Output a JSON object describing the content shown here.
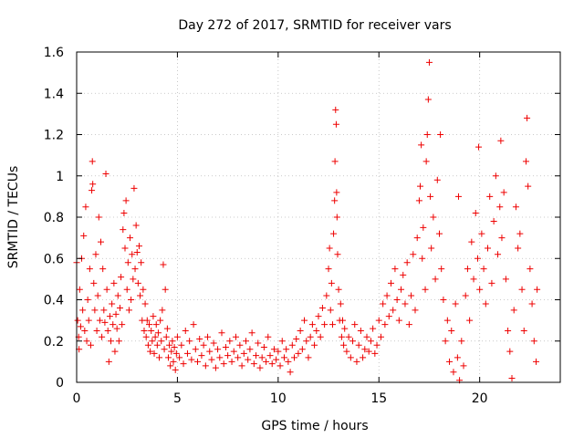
{
  "chart_data": {
    "type": "scatter",
    "title": "Day 272 of 2017, SRMTID for receiver vars",
    "xlabel": "GPS time / hours",
    "ylabel": "SRMTID / TECUs",
    "xlim": [
      0,
      24
    ],
    "ylim": [
      0,
      1.6
    ],
    "grid": true,
    "marker": "+",
    "color": "#ee0000",
    "xticks": [
      0,
      5,
      10,
      15,
      20
    ],
    "xtick_labels": [
      "0",
      "5",
      "10",
      "15",
      "20"
    ],
    "yticks": [
      0,
      0.2,
      0.4,
      0.6,
      0.8,
      1.0,
      1.2,
      1.4,
      1.6
    ],
    "ytick_labels": [
      "0",
      "0.2",
      "0.4",
      "0.6",
      "0.8",
      "1",
      "1.2",
      "1.4",
      "1.6"
    ],
    "series": [
      {
        "name": "SRMTID",
        "points": [
          [
            0.0,
            0.58
          ],
          [
            0.05,
            0.3
          ],
          [
            0.1,
            0.22
          ],
          [
            0.12,
            0.16
          ],
          [
            0.15,
            0.45
          ],
          [
            0.2,
            0.27
          ],
          [
            0.25,
            0.6
          ],
          [
            0.3,
            0.35
          ],
          [
            0.35,
            0.71
          ],
          [
            0.4,
            0.25
          ],
          [
            0.45,
            0.85
          ],
          [
            0.5,
            0.2
          ],
          [
            0.55,
            0.4
          ],
          [
            0.6,
            0.3
          ],
          [
            0.65,
            0.55
          ],
          [
            0.7,
            0.18
          ],
          [
            0.75,
            0.93
          ],
          [
            0.78,
            1.07
          ],
          [
            0.8,
            0.96
          ],
          [
            0.85,
            0.48
          ],
          [
            0.9,
            0.35
          ],
          [
            0.95,
            0.62
          ],
          [
            1.0,
            0.25
          ],
          [
            1.05,
            0.42
          ],
          [
            1.1,
            0.8
          ],
          [
            1.15,
            0.3
          ],
          [
            1.2,
            0.68
          ],
          [
            1.25,
            0.22
          ],
          [
            1.3,
            0.55
          ],
          [
            1.35,
            0.35
          ],
          [
            1.4,
            0.29
          ],
          [
            1.45,
            1.01
          ],
          [
            1.5,
            0.45
          ],
          [
            1.55,
            0.25
          ],
          [
            1.6,
            0.1
          ],
          [
            1.65,
            0.32
          ],
          [
            1.7,
            0.2
          ],
          [
            1.75,
            0.38
          ],
          [
            1.8,
            0.28
          ],
          [
            1.85,
            0.48
          ],
          [
            1.9,
            0.15
          ],
          [
            1.95,
            0.33
          ],
          [
            2.0,
            0.26
          ],
          [
            2.05,
            0.42
          ],
          [
            2.1,
            0.2
          ],
          [
            2.15,
            0.36
          ],
          [
            2.2,
            0.51
          ],
          [
            2.25,
            0.28
          ],
          [
            2.3,
            0.74
          ],
          [
            2.35,
            0.82
          ],
          [
            2.4,
            0.65
          ],
          [
            2.45,
            0.88
          ],
          [
            2.5,
            0.45
          ],
          [
            2.55,
            0.58
          ],
          [
            2.6,
            0.35
          ],
          [
            2.65,
            0.7
          ],
          [
            2.7,
            0.4
          ],
          [
            2.75,
            0.62
          ],
          [
            2.8,
            0.5
          ],
          [
            2.85,
            0.94
          ],
          [
            2.9,
            0.55
          ],
          [
            2.95,
            0.76
          ],
          [
            3.0,
            0.63
          ],
          [
            3.05,
            0.48
          ],
          [
            3.1,
            0.66
          ],
          [
            3.15,
            0.42
          ],
          [
            3.2,
            0.58
          ],
          [
            3.25,
            0.3
          ],
          [
            3.3,
            0.45
          ],
          [
            3.35,
            0.25
          ],
          [
            3.4,
            0.38
          ],
          [
            3.45,
            0.22
          ],
          [
            3.5,
            0.3
          ],
          [
            3.55,
            0.18
          ],
          [
            3.6,
            0.28
          ],
          [
            3.65,
            0.15
          ],
          [
            3.7,
            0.25
          ],
          [
            3.75,
            0.2
          ],
          [
            3.8,
            0.32
          ],
          [
            3.85,
            0.14
          ],
          [
            3.9,
            0.22
          ],
          [
            3.95,
            0.28
          ],
          [
            4.0,
            0.18
          ],
          [
            4.05,
            0.24
          ],
          [
            4.1,
            0.12
          ],
          [
            4.15,
            0.3
          ],
          [
            4.2,
            0.2
          ],
          [
            4.25,
            0.35
          ],
          [
            4.3,
            0.57
          ],
          [
            4.35,
            0.16
          ],
          [
            4.4,
            0.45
          ],
          [
            4.45,
            0.22
          ],
          [
            4.5,
            0.26
          ],
          [
            4.55,
            0.12
          ],
          [
            4.6,
            0.18
          ],
          [
            4.65,
            0.08
          ],
          [
            4.7,
            0.15
          ],
          [
            4.75,
            0.2
          ],
          [
            4.8,
            0.1
          ],
          [
            4.85,
            0.17
          ],
          [
            4.9,
            0.06
          ],
          [
            4.95,
            0.14
          ],
          [
            5.0,
            0.22
          ],
          [
            5.1,
            0.12
          ],
          [
            5.2,
            0.18
          ],
          [
            5.3,
            0.09
          ],
          [
            5.4,
            0.25
          ],
          [
            5.5,
            0.14
          ],
          [
            5.6,
            0.2
          ],
          [
            5.7,
            0.11
          ],
          [
            5.8,
            0.28
          ],
          [
            5.9,
            0.16
          ],
          [
            6.0,
            0.1
          ],
          [
            6.1,
            0.21
          ],
          [
            6.2,
            0.13
          ],
          [
            6.3,
            0.18
          ],
          [
            6.4,
            0.08
          ],
          [
            6.5,
            0.22
          ],
          [
            6.6,
            0.15
          ],
          [
            6.7,
            0.11
          ],
          [
            6.8,
            0.19
          ],
          [
            6.9,
            0.07
          ],
          [
            7.0,
            0.16
          ],
          [
            7.1,
            0.12
          ],
          [
            7.2,
            0.24
          ],
          [
            7.3,
            0.09
          ],
          [
            7.4,
            0.17
          ],
          [
            7.5,
            0.13
          ],
          [
            7.6,
            0.2
          ],
          [
            7.7,
            0.1
          ],
          [
            7.8,
            0.15
          ],
          [
            7.9,
            0.22
          ],
          [
            8.0,
            0.12
          ],
          [
            8.1,
            0.18
          ],
          [
            8.2,
            0.08
          ],
          [
            8.3,
            0.14
          ],
          [
            8.4,
            0.2
          ],
          [
            8.5,
            0.11
          ],
          [
            8.6,
            0.16
          ],
          [
            8.7,
            0.24
          ],
          [
            8.8,
            0.09
          ],
          [
            8.9,
            0.13
          ],
          [
            9.0,
            0.19
          ],
          [
            9.1,
            0.07
          ],
          [
            9.2,
            0.12
          ],
          [
            9.3,
            0.17
          ],
          [
            9.4,
            0.1
          ],
          [
            9.5,
            0.22
          ],
          [
            9.6,
            0.13
          ],
          [
            9.7,
            0.09
          ],
          [
            9.8,
            0.16
          ],
          [
            9.9,
            0.11
          ],
          [
            10.0,
            0.15
          ],
          [
            10.1,
            0.08
          ],
          [
            10.2,
            0.2
          ],
          [
            10.3,
            0.12
          ],
          [
            10.4,
            0.16
          ],
          [
            10.5,
            0.1
          ],
          [
            10.6,
            0.05
          ],
          [
            10.7,
            0.18
          ],
          [
            10.8,
            0.12
          ],
          [
            10.9,
            0.21
          ],
          [
            11.0,
            0.14
          ],
          [
            11.1,
            0.25
          ],
          [
            11.2,
            0.16
          ],
          [
            11.3,
            0.3
          ],
          [
            11.4,
            0.2
          ],
          [
            11.5,
            0.12
          ],
          [
            11.6,
            0.22
          ],
          [
            11.7,
            0.28
          ],
          [
            11.8,
            0.18
          ],
          [
            11.9,
            0.25
          ],
          [
            12.0,
            0.32
          ],
          [
            12.1,
            0.22
          ],
          [
            12.2,
            0.36
          ],
          [
            12.3,
            0.28
          ],
          [
            12.4,
            0.42
          ],
          [
            12.5,
            0.55
          ],
          [
            12.55,
            0.65
          ],
          [
            12.6,
            0.35
          ],
          [
            12.65,
            0.48
          ],
          [
            12.7,
            0.28
          ],
          [
            12.75,
            0.72
          ],
          [
            12.8,
            0.88
          ],
          [
            12.82,
            1.07
          ],
          [
            12.85,
            1.32
          ],
          [
            12.88,
            1.25
          ],
          [
            12.9,
            0.92
          ],
          [
            12.92,
            0.8
          ],
          [
            12.95,
            0.62
          ],
          [
            13.0,
            0.45
          ],
          [
            13.05,
            0.3
          ],
          [
            13.1,
            0.38
          ],
          [
            13.15,
            0.22
          ],
          [
            13.2,
            0.3
          ],
          [
            13.25,
            0.18
          ],
          [
            13.3,
            0.26
          ],
          [
            13.4,
            0.15
          ],
          [
            13.5,
            0.22
          ],
          [
            13.6,
            0.12
          ],
          [
            13.7,
            0.2
          ],
          [
            13.8,
            0.28
          ],
          [
            13.9,
            0.1
          ],
          [
            14.0,
            0.18
          ],
          [
            14.1,
            0.25
          ],
          [
            14.2,
            0.12
          ],
          [
            14.3,
            0.16
          ],
          [
            14.4,
            0.22
          ],
          [
            14.5,
            0.15
          ],
          [
            14.6,
            0.2
          ],
          [
            14.7,
            0.26
          ],
          [
            14.8,
            0.14
          ],
          [
            14.9,
            0.18
          ],
          [
            15.0,
            0.3
          ],
          [
            15.1,
            0.22
          ],
          [
            15.2,
            0.38
          ],
          [
            15.3,
            0.28
          ],
          [
            15.4,
            0.42
          ],
          [
            15.5,
            0.32
          ],
          [
            15.6,
            0.48
          ],
          [
            15.7,
            0.35
          ],
          [
            15.8,
            0.55
          ],
          [
            15.9,
            0.4
          ],
          [
            16.0,
            0.3
          ],
          [
            16.1,
            0.45
          ],
          [
            16.2,
            0.52
          ],
          [
            16.3,
            0.38
          ],
          [
            16.4,
            0.58
          ],
          [
            16.5,
            0.28
          ],
          [
            16.6,
            0.42
          ],
          [
            16.7,
            0.62
          ],
          [
            16.8,
            0.35
          ],
          [
            16.9,
            0.7
          ],
          [
            17.0,
            0.88
          ],
          [
            17.05,
            0.95
          ],
          [
            17.1,
            1.15
          ],
          [
            17.15,
            0.6
          ],
          [
            17.2,
            0.75
          ],
          [
            17.3,
            0.45
          ],
          [
            17.35,
            1.07
          ],
          [
            17.4,
            1.2
          ],
          [
            17.45,
            1.37
          ],
          [
            17.5,
            1.55
          ],
          [
            17.55,
            0.9
          ],
          [
            17.6,
            0.65
          ],
          [
            17.7,
            0.8
          ],
          [
            17.8,
            0.5
          ],
          [
            17.9,
            0.98
          ],
          [
            18.0,
            0.72
          ],
          [
            18.05,
            1.2
          ],
          [
            18.1,
            0.55
          ],
          [
            18.2,
            0.4
          ],
          [
            18.3,
            0.2
          ],
          [
            18.4,
            0.3
          ],
          [
            18.5,
            0.1
          ],
          [
            18.6,
            0.25
          ],
          [
            18.7,
            0.05
          ],
          [
            18.8,
            0.38
          ],
          [
            18.9,
            0.12
          ],
          [
            18.95,
            0.9
          ],
          [
            19.0,
            0.01
          ],
          [
            19.1,
            0.2
          ],
          [
            19.2,
            0.08
          ],
          [
            19.3,
            0.42
          ],
          [
            19.4,
            0.55
          ],
          [
            19.5,
            0.3
          ],
          [
            19.6,
            0.68
          ],
          [
            19.7,
            0.5
          ],
          [
            19.8,
            0.82
          ],
          [
            19.9,
            0.6
          ],
          [
            19.95,
            1.14
          ],
          [
            20.0,
            0.45
          ],
          [
            20.1,
            0.72
          ],
          [
            20.2,
            0.55
          ],
          [
            20.3,
            0.38
          ],
          [
            20.4,
            0.65
          ],
          [
            20.5,
            0.9
          ],
          [
            20.6,
            0.48
          ],
          [
            20.7,
            0.78
          ],
          [
            20.8,
            1.0
          ],
          [
            20.9,
            0.62
          ],
          [
            21.0,
            0.85
          ],
          [
            21.05,
            1.17
          ],
          [
            21.1,
            0.7
          ],
          [
            21.2,
            0.92
          ],
          [
            21.3,
            0.5
          ],
          [
            21.4,
            0.25
          ],
          [
            21.5,
            0.15
          ],
          [
            21.6,
            0.02
          ],
          [
            21.7,
            0.35
          ],
          [
            21.8,
            0.85
          ],
          [
            21.9,
            0.65
          ],
          [
            22.0,
            0.72
          ],
          [
            22.1,
            0.45
          ],
          [
            22.2,
            0.25
          ],
          [
            22.3,
            1.07
          ],
          [
            22.35,
            1.28
          ],
          [
            22.4,
            0.95
          ],
          [
            22.5,
            0.55
          ],
          [
            22.6,
            0.38
          ],
          [
            22.7,
            0.2
          ],
          [
            22.8,
            0.1
          ],
          [
            22.85,
            0.45
          ]
        ]
      }
    ]
  }
}
